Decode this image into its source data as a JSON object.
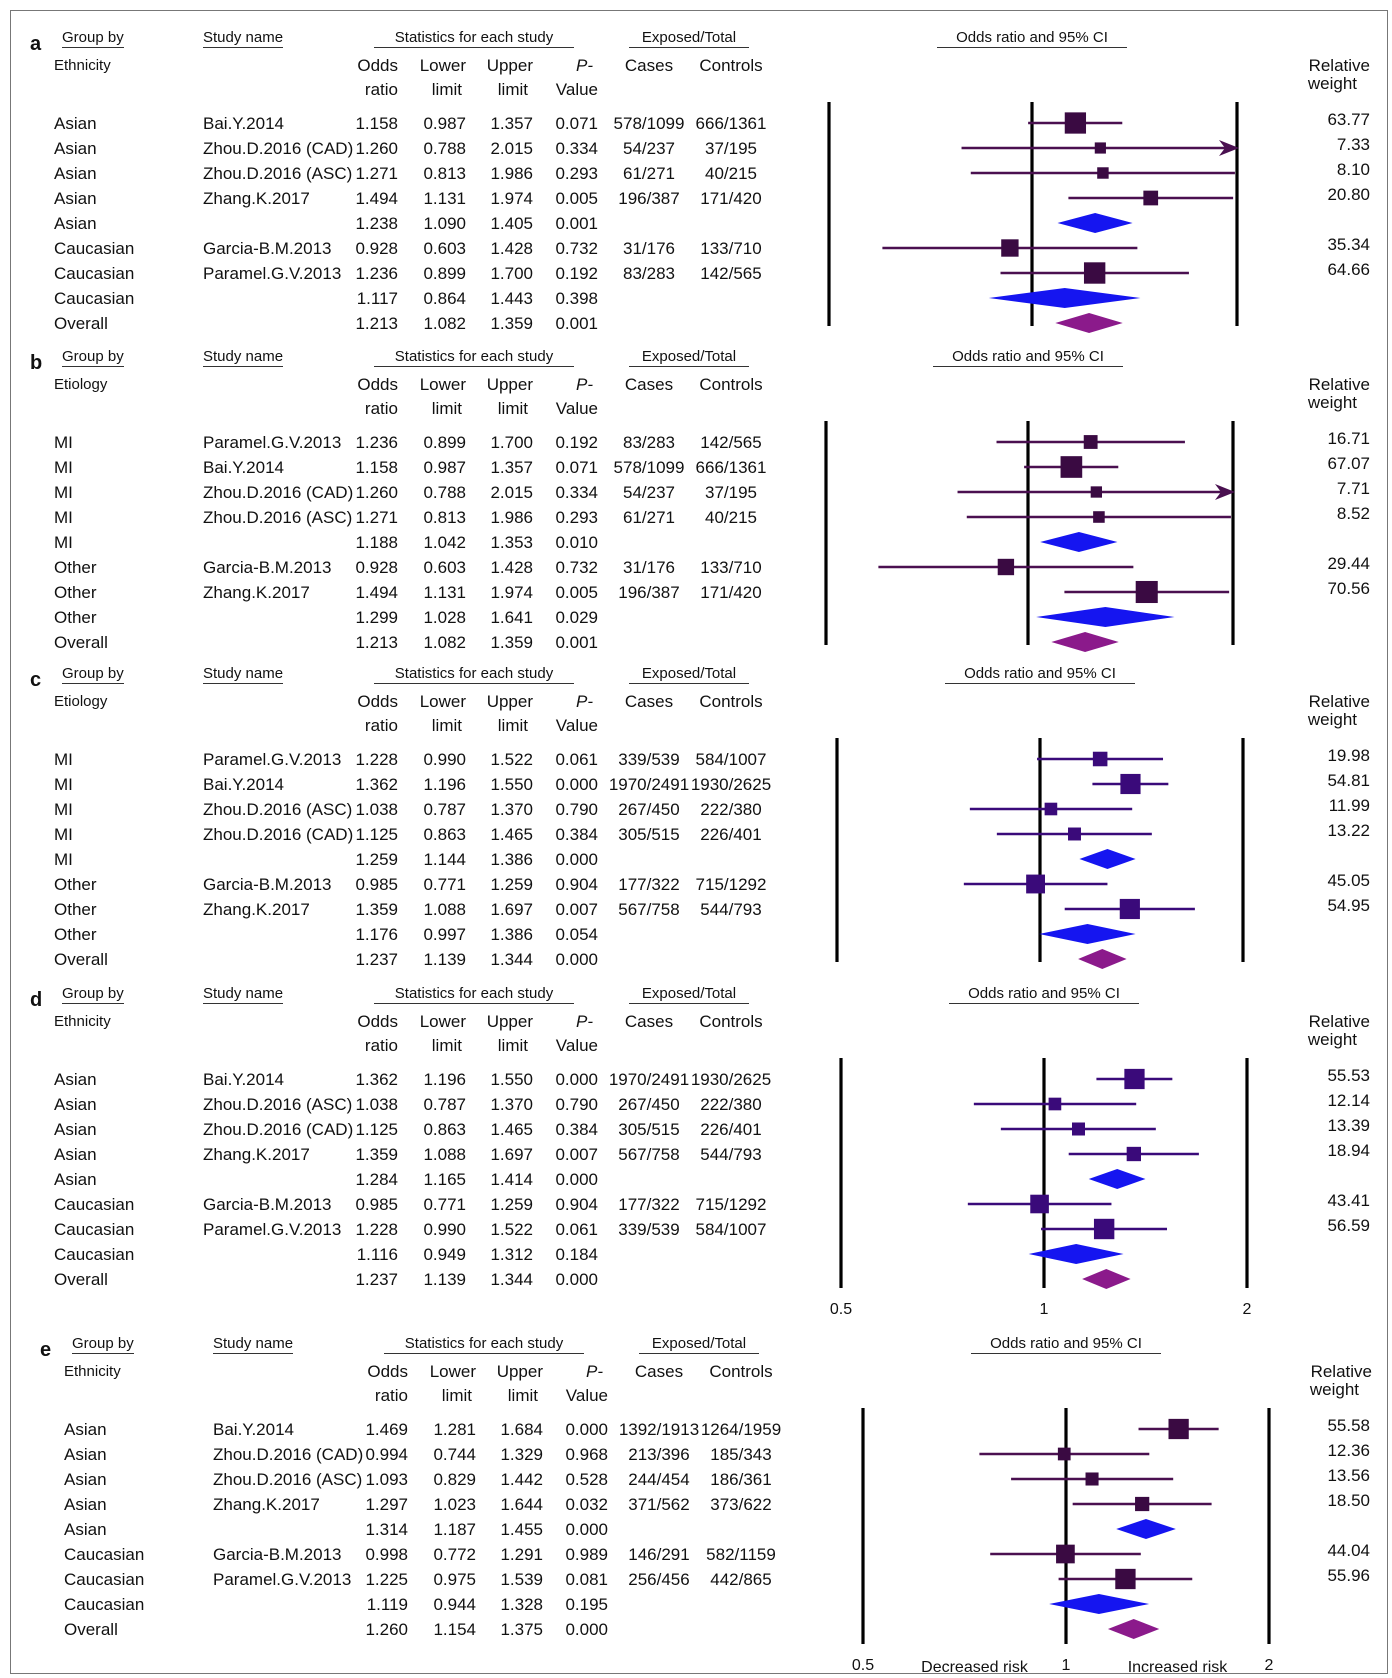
{
  "headers": {
    "group_by": "Group by",
    "study_name": "Study name",
    "statistics": "Statistics for each study",
    "exposed_total": "Exposed/Total",
    "or_ci": "Odds ratio and 95% CI",
    "odds": "Odds",
    "ratio": "ratio",
    "lower": "Lower",
    "upper": "Upper",
    "limit": "limit",
    "p": "P-",
    "value": "Value",
    "cases": "Cases",
    "controls": "Controls",
    "relative": "Relative",
    "weight": "weight"
  },
  "axis": {
    "ticks_d": [
      "0.5",
      "1",
      "2"
    ],
    "ticks_e": [
      "0.5",
      "1",
      "2"
    ],
    "decreased": "Decreased risk",
    "increased": "Increased risk"
  },
  "chart_data": [
    {
      "type": "table",
      "panel": "a",
      "group_label": "Ethnicity",
      "marker_color": "#3a0a42",
      "line_color": "#4a1050",
      "subtotal_color": "#1515f0",
      "overall_color": "#8b1a8b",
      "arrow_rows": [
        1
      ],
      "rows": [
        {
          "group": "Asian",
          "study": "Bai.Y.2014",
          "or": "1.158",
          "lower": "0.987",
          "upper": "1.357",
          "p": "0.071",
          "cases": "578/1099",
          "controls": "666/1361",
          "weight": "63.77",
          "kind": "study"
        },
        {
          "group": "Asian",
          "study": "Zhou.D.2016 (CAD)",
          "or": "1.260",
          "lower": "0.788",
          "upper": "2.015",
          "p": "0.334",
          "cases": "54/237",
          "controls": "37/195",
          "weight": "7.33",
          "kind": "study"
        },
        {
          "group": "Asian",
          "study": "Zhou.D.2016 (ASC)",
          "or": "1.271",
          "lower": "0.813",
          "upper": "1.986",
          "p": "0.293",
          "cases": "61/271",
          "controls": "40/215",
          "weight": "8.10",
          "kind": "study"
        },
        {
          "group": "Asian",
          "study": "Zhang.K.2017",
          "or": "1.494",
          "lower": "1.131",
          "upper": "1.974",
          "p": "0.005",
          "cases": "196/387",
          "controls": "171/420",
          "weight": "20.80",
          "kind": "study"
        },
        {
          "group": "Asian",
          "study": "",
          "or": "1.238",
          "lower": "1.090",
          "upper": "1.405",
          "p": "0.001",
          "cases": "",
          "controls": "",
          "weight": "",
          "kind": "subtotal"
        },
        {
          "group": "Caucasian",
          "study": "Garcia-B.M.2013",
          "or": "0.928",
          "lower": "0.603",
          "upper": "1.428",
          "p": "0.732",
          "cases": "31/176",
          "controls": "133/710",
          "weight": "35.34",
          "kind": "study"
        },
        {
          "group": "Caucasian",
          "study": "Paramel.G.V.2013",
          "or": "1.236",
          "lower": "0.899",
          "upper": "1.700",
          "p": "0.192",
          "cases": "83/283",
          "controls": "142/565",
          "weight": "64.66",
          "kind": "study"
        },
        {
          "group": "Caucasian",
          "study": "",
          "or": "1.117",
          "lower": "0.864",
          "upper": "1.443",
          "p": "0.398",
          "cases": "",
          "controls": "",
          "weight": "",
          "kind": "subtotal"
        },
        {
          "group": "Overall",
          "study": "",
          "or": "1.213",
          "lower": "1.082",
          "upper": "1.359",
          "p": "0.001",
          "cases": "",
          "controls": "",
          "weight": "",
          "kind": "overall"
        }
      ]
    },
    {
      "type": "table",
      "panel": "b",
      "group_label": "Etiology",
      "marker_color": "#3a0a42",
      "line_color": "#4a1050",
      "subtotal_color": "#1515f0",
      "overall_color": "#8b1a8b",
      "arrow_rows": [
        2
      ],
      "rows": [
        {
          "group": "MI",
          "study": "Paramel.G.V.2013",
          "or": "1.236",
          "lower": "0.899",
          "upper": "1.700",
          "p": "0.192",
          "cases": "83/283",
          "controls": "142/565",
          "weight": "16.71",
          "kind": "study"
        },
        {
          "group": "MI",
          "study": "Bai.Y.2014",
          "or": "1.158",
          "lower": "0.987",
          "upper": "1.357",
          "p": "0.071",
          "cases": "578/1099",
          "controls": "666/1361",
          "weight": "67.07",
          "kind": "study"
        },
        {
          "group": "MI",
          "study": "Zhou.D.2016 (CAD)",
          "or": "1.260",
          "lower": "0.788",
          "upper": "2.015",
          "p": "0.334",
          "cases": "54/237",
          "controls": "37/195",
          "weight": "7.71",
          "kind": "study"
        },
        {
          "group": "MI",
          "study": "Zhou.D.2016 (ASC)",
          "or": "1.271",
          "lower": "0.813",
          "upper": "1.986",
          "p": "0.293",
          "cases": "61/271",
          "controls": "40/215",
          "weight": "8.52",
          "kind": "study"
        },
        {
          "group": "MI",
          "study": "",
          "or": "1.188",
          "lower": "1.042",
          "upper": "1.353",
          "p": "0.010",
          "cases": "",
          "controls": "",
          "weight": "",
          "kind": "subtotal"
        },
        {
          "group": "Other",
          "study": "Garcia-B.M.2013",
          "or": "0.928",
          "lower": "0.603",
          "upper": "1.428",
          "p": "0.732",
          "cases": "31/176",
          "controls": "133/710",
          "weight": "29.44",
          "kind": "study"
        },
        {
          "group": "Other",
          "study": "Zhang.K.2017",
          "or": "1.494",
          "lower": "1.131",
          "upper": "1.974",
          "p": "0.005",
          "cases": "196/387",
          "controls": "171/420",
          "weight": "70.56",
          "kind": "study"
        },
        {
          "group": "Other",
          "study": "",
          "or": "1.299",
          "lower": "1.028",
          "upper": "1.641",
          "p": "0.029",
          "cases": "",
          "controls": "",
          "weight": "",
          "kind": "subtotal"
        },
        {
          "group": "Overall",
          "study": "",
          "or": "1.213",
          "lower": "1.082",
          "upper": "1.359",
          "p": "0.001",
          "cases": "",
          "controls": "",
          "weight": "",
          "kind": "overall"
        }
      ]
    },
    {
      "type": "table",
      "panel": "c",
      "group_label": "Etiology",
      "marker_color": "#3a0a7a",
      "line_color": "#3a0a7a",
      "subtotal_color": "#1515f0",
      "overall_color": "#8b1a8b",
      "arrow_rows": [],
      "rows": [
        {
          "group": "MI",
          "study": "Paramel.G.V.2013",
          "or": "1.228",
          "lower": "0.990",
          "upper": "1.522",
          "p": "0.061",
          "cases": "339/539",
          "controls": "584/1007",
          "weight": "19.98",
          "kind": "study"
        },
        {
          "group": "MI",
          "study": "Bai.Y.2014",
          "or": "1.362",
          "lower": "1.196",
          "upper": "1.550",
          "p": "0.000",
          "cases": "1970/2491",
          "controls": "1930/2625",
          "weight": "54.81",
          "kind": "study"
        },
        {
          "group": "MI",
          "study": "Zhou.D.2016 (ASC)",
          "or": "1.038",
          "lower": "0.787",
          "upper": "1.370",
          "p": "0.790",
          "cases": "267/450",
          "controls": "222/380",
          "weight": "11.99",
          "kind": "study"
        },
        {
          "group": "MI",
          "study": "Zhou.D.2016 (CAD)",
          "or": "1.125",
          "lower": "0.863",
          "upper": "1.465",
          "p": "0.384",
          "cases": "305/515",
          "controls": "226/401",
          "weight": "13.22",
          "kind": "study"
        },
        {
          "group": "MI",
          "study": "",
          "or": "1.259",
          "lower": "1.144",
          "upper": "1.386",
          "p": "0.000",
          "cases": "",
          "controls": "",
          "weight": "",
          "kind": "subtotal"
        },
        {
          "group": "Other",
          "study": "Garcia-B.M.2013",
          "or": "0.985",
          "lower": "0.771",
          "upper": "1.259",
          "p": "0.904",
          "cases": "177/322",
          "controls": "715/1292",
          "weight": "45.05",
          "kind": "study"
        },
        {
          "group": "Other",
          "study": "Zhang.K.2017",
          "or": "1.359",
          "lower": "1.088",
          "upper": "1.697",
          "p": "0.007",
          "cases": "567/758",
          "controls": "544/793",
          "weight": "54.95",
          "kind": "study"
        },
        {
          "group": "Other",
          "study": "",
          "or": "1.176",
          "lower": "0.997",
          "upper": "1.386",
          "p": "0.054",
          "cases": "",
          "controls": "",
          "weight": "",
          "kind": "subtotal"
        },
        {
          "group": "Overall",
          "study": "",
          "or": "1.237",
          "lower": "1.139",
          "upper": "1.344",
          "p": "0.000",
          "cases": "",
          "controls": "",
          "weight": "",
          "kind": "overall"
        }
      ]
    },
    {
      "type": "table",
      "panel": "d",
      "group_label": "Ethnicity",
      "marker_color": "#3a0a7a",
      "line_color": "#3a0a7a",
      "subtotal_color": "#1515f0",
      "overall_color": "#8b1a8b",
      "arrow_rows": [],
      "rows": [
        {
          "group": "Asian",
          "study": "Bai.Y.2014",
          "or": "1.362",
          "lower": "1.196",
          "upper": "1.550",
          "p": "0.000",
          "cases": "1970/2491",
          "controls": "1930/2625",
          "weight": "55.53",
          "kind": "study"
        },
        {
          "group": "Asian",
          "study": "Zhou.D.2016 (ASC)",
          "or": "1.038",
          "lower": "0.787",
          "upper": "1.370",
          "p": "0.790",
          "cases": "267/450",
          "controls": "222/380",
          "weight": "12.14",
          "kind": "study"
        },
        {
          "group": "Asian",
          "study": "Zhou.D.2016 (CAD)",
          "or": "1.125",
          "lower": "0.863",
          "upper": "1.465",
          "p": "0.384",
          "cases": "305/515",
          "controls": "226/401",
          "weight": "13.39",
          "kind": "study"
        },
        {
          "group": "Asian",
          "study": "Zhang.K.2017",
          "or": "1.359",
          "lower": "1.088",
          "upper": "1.697",
          "p": "0.007",
          "cases": "567/758",
          "controls": "544/793",
          "weight": "18.94",
          "kind": "study"
        },
        {
          "group": "Asian",
          "study": "",
          "or": "1.284",
          "lower": "1.165",
          "upper": "1.414",
          "p": "0.000",
          "cases": "",
          "controls": "",
          "weight": "",
          "kind": "subtotal"
        },
        {
          "group": "Caucasian",
          "study": "Garcia-B.M.2013",
          "or": "0.985",
          "lower": "0.771",
          "upper": "1.259",
          "p": "0.904",
          "cases": "177/322",
          "controls": "715/1292",
          "weight": "43.41",
          "kind": "study"
        },
        {
          "group": "Caucasian",
          "study": "Paramel.G.V.2013",
          "or": "1.228",
          "lower": "0.990",
          "upper": "1.522",
          "p": "0.061",
          "cases": "339/539",
          "controls": "584/1007",
          "weight": "56.59",
          "kind": "study"
        },
        {
          "group": "Caucasian",
          "study": "",
          "or": "1.116",
          "lower": "0.949",
          "upper": "1.312",
          "p": "0.184",
          "cases": "",
          "controls": "",
          "weight": "",
          "kind": "subtotal"
        },
        {
          "group": "Overall",
          "study": "",
          "or": "1.237",
          "lower": "1.139",
          "upper": "1.344",
          "p": "0.000",
          "cases": "",
          "controls": "",
          "weight": "",
          "kind": "overall"
        }
      ]
    },
    {
      "type": "table",
      "panel": "e",
      "group_label": "Ethnicity",
      "marker_color": "#3a0a42",
      "line_color": "#4a1050",
      "subtotal_color": "#1515f0",
      "overall_color": "#8b1a8b",
      "arrow_rows": [],
      "rows": [
        {
          "group": "Asian",
          "study": "Bai.Y.2014",
          "or": "1.469",
          "lower": "1.281",
          "upper": "1.684",
          "p": "0.000",
          "cases": "1392/1913",
          "controls": "1264/1959",
          "weight": "55.58",
          "kind": "study"
        },
        {
          "group": "Asian",
          "study": "Zhou.D.2016 (CAD)",
          "or": "0.994",
          "lower": "0.744",
          "upper": "1.329",
          "p": "0.968",
          "cases": "213/396",
          "controls": "185/343",
          "weight": "12.36",
          "kind": "study"
        },
        {
          "group": "Asian",
          "study": "Zhou.D.2016 (ASC)",
          "or": "1.093",
          "lower": "0.829",
          "upper": "1.442",
          "p": "0.528",
          "cases": "244/454",
          "controls": "186/361",
          "weight": "13.56",
          "kind": "study"
        },
        {
          "group": "Asian",
          "study": "Zhang.K.2017",
          "or": "1.297",
          "lower": "1.023",
          "upper": "1.644",
          "p": "0.032",
          "cases": "371/562",
          "controls": "373/622",
          "weight": "18.50",
          "kind": "study"
        },
        {
          "group": "Asian",
          "study": "",
          "or": "1.314",
          "lower": "1.187",
          "upper": "1.455",
          "p": "0.000",
          "cases": "",
          "controls": "",
          "weight": "",
          "kind": "subtotal"
        },
        {
          "group": "Caucasian",
          "study": "Garcia-B.M.2013",
          "or": "0.998",
          "lower": "0.772",
          "upper": "1.291",
          "p": "0.989",
          "cases": "146/291",
          "controls": "582/1159",
          "weight": "44.04",
          "kind": "study"
        },
        {
          "group": "Caucasian",
          "study": "Paramel.G.V.2013",
          "or": "1.225",
          "lower": "0.975",
          "upper": "1.539",
          "p": "0.081",
          "cases": "256/456",
          "controls": "442/865",
          "weight": "55.96",
          "kind": "study"
        },
        {
          "group": "Caucasian",
          "study": "",
          "or": "1.119",
          "lower": "0.944",
          "upper": "1.328",
          "p": "0.195",
          "cases": "",
          "controls": "",
          "weight": "",
          "kind": "subtotal"
        },
        {
          "group": "Overall",
          "study": "",
          "or": "1.260",
          "lower": "1.154",
          "upper": "1.375",
          "p": "0.000",
          "cases": "",
          "controls": "",
          "weight": "",
          "kind": "overall"
        }
      ]
    }
  ]
}
